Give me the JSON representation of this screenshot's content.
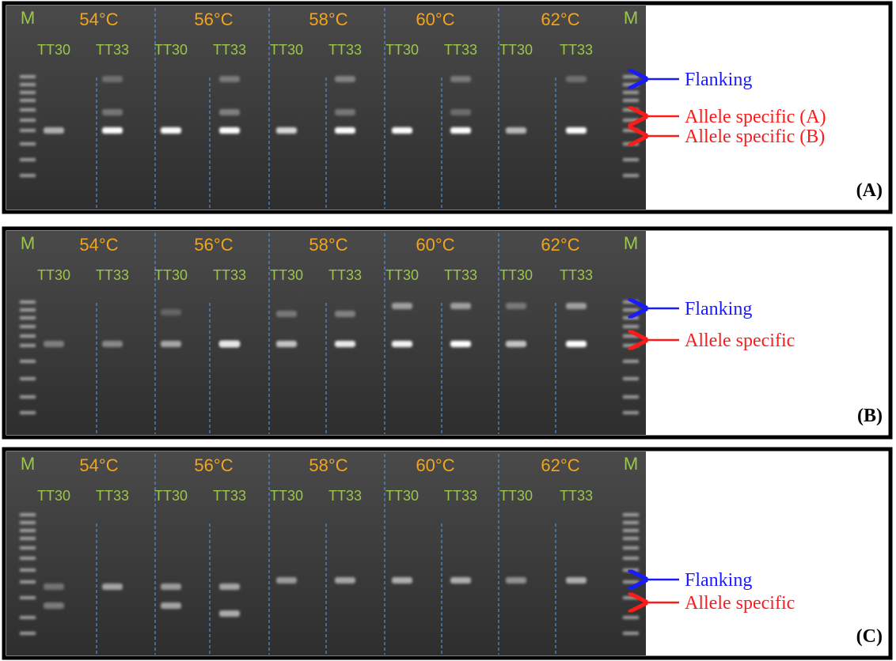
{
  "panels": [
    {
      "label": "(A)",
      "markers": [
        "M",
        "M"
      ],
      "temperatures": [
        "54°C",
        "56°C",
        "58°C",
        "60°C",
        "62°C"
      ],
      "lanes": [
        "TT30",
        "TT33",
        "TT30",
        "TT33",
        "TT30",
        "TT33",
        "TT30",
        "TT33",
        "TT30",
        "TT33"
      ],
      "annotations": [
        {
          "text": "Flanking",
          "color": "#1a1aff"
        },
        {
          "text": "Allele specific (A)",
          "color": "#ff1a1a"
        },
        {
          "text": "Allele specific (B)",
          "color": "#ff1a1a"
        }
      ]
    },
    {
      "label": "(B)",
      "markers": [
        "M",
        "M"
      ],
      "temperatures": [
        "54°C",
        "56°C",
        "58°C",
        "60°C",
        "62°C"
      ],
      "lanes": [
        "TT30",
        "TT33",
        "TT30",
        "TT33",
        "TT30",
        "TT33",
        "TT30",
        "TT33",
        "TT30",
        "TT33"
      ],
      "annotations": [
        {
          "text": "Flanking",
          "color": "#1a1aff"
        },
        {
          "text": "Allele specific",
          "color": "#ff1a1a"
        }
      ]
    },
    {
      "label": "(C)",
      "markers": [
        "M",
        "M"
      ],
      "temperatures": [
        "54°C",
        "56°C",
        "58°C",
        "60°C",
        "62°C"
      ],
      "lanes": [
        "TT30",
        "TT33",
        "TT30",
        "TT33",
        "TT30",
        "TT33",
        "TT30",
        "TT33",
        "TT30",
        "TT33"
      ],
      "annotations": [
        {
          "text": "Flanking",
          "color": "#1a1aff"
        },
        {
          "text": "Allele specific",
          "color": "#ff1a1a"
        }
      ]
    }
  ]
}
